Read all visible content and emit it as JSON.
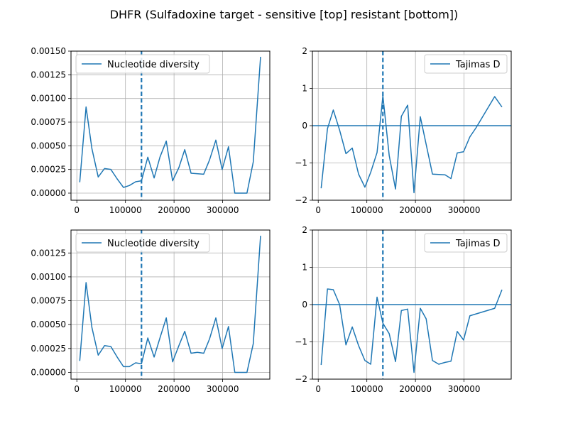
{
  "figure": {
    "suptitle": "DHFR (Sulfadoxine target - sensitive [top] resistant [bottom])"
  },
  "colors": {
    "series": "#1f77b4",
    "grid": "#b0b0b0",
    "axes": "#000000",
    "background": "#ffffff"
  },
  "chart_data": [
    {
      "type": "line",
      "title": "",
      "panel": "top-left",
      "xlabel": "",
      "ylabel": "",
      "xlim": [
        -12000,
        397000
      ],
      "ylim": [
        -7.5e-05,
        0.0015
      ],
      "xticks": [
        0,
        100000,
        200000,
        300000
      ],
      "xtick_labels": [
        "0",
        "100000",
        "200000",
        "300000"
      ],
      "yticks": [
        0,
        0.00025,
        0.0005,
        0.00075,
        0.001,
        0.00125,
        0.0015
      ],
      "ytick_labels": [
        "0.00000",
        "0.00025",
        "0.00050",
        "0.00075",
        "0.00100",
        "0.00125",
        "0.00150"
      ],
      "grid": true,
      "legend": "upper left",
      "vline_x": 133000,
      "series": [
        {
          "name": "Nucleotide diversity",
          "x": [
            6000,
            19000,
            31000,
            44000,
            57000,
            70000,
            83000,
            96000,
            108000,
            121000,
            133000,
            146000,
            159000,
            171000,
            184000,
            197000,
            210000,
            222000,
            235000,
            261000,
            273000,
            286000,
            299000,
            312000,
            325000,
            350000,
            363000,
            378000
          ],
          "y": [
            0.000115,
            0.00091,
            0.00047,
            0.00017,
            0.00026,
            0.00025,
            0.00015,
            6e-05,
            8e-05,
            0.00012,
            0.00013,
            0.00038,
            0.00016,
            0.00038,
            0.00055,
            0.00013,
            0.00027,
            0.00046,
            0.00021,
            0.0002,
            0.00035,
            0.00056,
            0.00025,
            0.00049,
            0.0,
            0.0,
            0.00033,
            0.00144
          ]
        }
      ]
    },
    {
      "type": "line",
      "title": "",
      "panel": "top-right",
      "xlabel": "",
      "ylabel": "",
      "xlim": [
        -12000,
        397000
      ],
      "ylim": [
        -2,
        2
      ],
      "xticks": [
        0,
        100000,
        200000,
        300000
      ],
      "xtick_labels": [
        "0",
        "100000",
        "200000",
        "300000"
      ],
      "yticks": [
        -2,
        -1,
        0,
        1,
        2
      ],
      "ytick_labels": [
        "−2",
        "−1",
        "0",
        "1",
        "2"
      ],
      "grid": true,
      "legend": "upper right",
      "vline_x": 133000,
      "hline_y": 0,
      "series": [
        {
          "name": "Tajimas D",
          "x": [
            6000,
            19000,
            31000,
            44000,
            57000,
            70000,
            83000,
            96000,
            108000,
            121000,
            133000,
            146000,
            159000,
            171000,
            184000,
            197000,
            210000,
            222000,
            235000,
            261000,
            273000,
            286000,
            299000,
            312000,
            325000,
            363000,
            378000
          ],
          "y": [
            -1.68,
            -0.08,
            0.42,
            -0.12,
            -0.75,
            -0.6,
            -1.3,
            -1.65,
            -1.25,
            -0.72,
            0.8,
            -0.8,
            -1.7,
            0.25,
            0.55,
            -1.8,
            0.24,
            -0.5,
            -1.3,
            -1.32,
            -1.42,
            -0.73,
            -0.7,
            -0.3,
            -0.05,
            0.78,
            0.5
          ]
        }
      ]
    },
    {
      "type": "line",
      "title": "",
      "panel": "bottom-left",
      "xlabel": "",
      "ylabel": "",
      "xlim": [
        -12000,
        397000
      ],
      "ylim": [
        -7.1e-05,
        0.00149
      ],
      "xticks": [
        0,
        100000,
        200000,
        300000
      ],
      "xtick_labels": [
        "0",
        "100000",
        "200000",
        "300000"
      ],
      "yticks": [
        0,
        0.00025,
        0.0005,
        0.00075,
        0.001,
        0.00125
      ],
      "ytick_labels": [
        "0.00000",
        "0.00025",
        "0.00050",
        "0.00075",
        "0.00100",
        "0.00125"
      ],
      "grid": true,
      "legend": "upper left",
      "vline_x": 133000,
      "series": [
        {
          "name": "Nucleotide diversity",
          "x": [
            6000,
            19000,
            31000,
            44000,
            57000,
            70000,
            83000,
            96000,
            108000,
            121000,
            133000,
            146000,
            159000,
            171000,
            184000,
            197000,
            210000,
            222000,
            235000,
            248000,
            261000,
            273000,
            286000,
            299000,
            312000,
            325000,
            350000,
            363000,
            378000
          ],
          "y": [
            0.00012,
            0.00094,
            0.00047,
            0.00018,
            0.00028,
            0.00027,
            0.00016,
            6e-05,
            6e-05,
            0.0001,
            9e-05,
            0.00036,
            0.00016,
            0.00036,
            0.00057,
            0.00011,
            0.00028,
            0.00043,
            0.0002,
            0.00021,
            0.0002,
            0.00035,
            0.00057,
            0.00025,
            0.00048,
            0.0,
            0.0,
            0.0003,
            0.00143
          ]
        }
      ]
    },
    {
      "type": "line",
      "title": "",
      "panel": "bottom-right",
      "xlabel": "",
      "ylabel": "",
      "xlim": [
        -12000,
        397000
      ],
      "ylim": [
        -2,
        2
      ],
      "xticks": [
        0,
        100000,
        200000,
        300000
      ],
      "xtick_labels": [
        "0",
        "100000",
        "200000",
        "300000"
      ],
      "yticks": [
        -2,
        -1,
        0,
        1,
        2
      ],
      "ytick_labels": [
        "−2",
        "−1",
        "0",
        "1",
        "2"
      ],
      "grid": true,
      "legend": "upper right",
      "vline_x": 133000,
      "hline_y": 0,
      "series": [
        {
          "name": "Tajimas D",
          "x": [
            6000,
            19000,
            31000,
            44000,
            57000,
            70000,
            83000,
            96000,
            108000,
            121000,
            133000,
            146000,
            159000,
            171000,
            184000,
            197000,
            210000,
            222000,
            235000,
            248000,
            261000,
            273000,
            286000,
            299000,
            312000,
            363000,
            378000
          ],
          "y": [
            -1.62,
            0.42,
            0.4,
            0.0,
            -1.08,
            -0.6,
            -1.1,
            -1.5,
            -1.6,
            0.2,
            -0.5,
            -0.78,
            -1.53,
            -0.16,
            -0.12,
            -1.82,
            -0.1,
            -0.38,
            -1.5,
            -1.6,
            -1.55,
            -1.52,
            -0.72,
            -0.95,
            -0.3,
            -0.1,
            0.4
          ]
        }
      ]
    }
  ]
}
